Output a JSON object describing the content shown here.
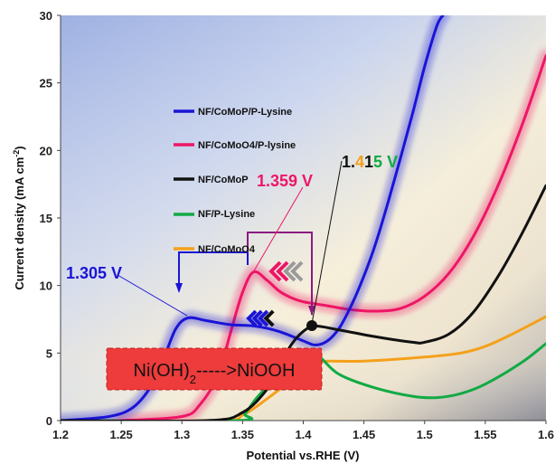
{
  "chart_data": {
    "type": "line",
    "xlabel": "Potential vs.RHE (V)",
    "ylabel": "Current density (mA cm",
    "ylabel_sup": "-2",
    "ylabel_end": ")",
    "xlim": [
      1.2,
      1.6
    ],
    "ylim": [
      0,
      30
    ],
    "xticks": [
      "1.2",
      "1.25",
      "1.3",
      "1.35",
      "1.4",
      "1.45",
      "1.5",
      "1.55",
      "1.6"
    ],
    "yticks": [
      "0",
      "5",
      "10",
      "15",
      "20",
      "25",
      "30"
    ],
    "legend_position": "left",
    "series": [
      {
        "name": "NF/CoMoP/P-Lysine",
        "color": "#1a14d6",
        "glow": true,
        "x": [
          1.2,
          1.24,
          1.26,
          1.275,
          1.285,
          1.295,
          1.305,
          1.32,
          1.34,
          1.36,
          1.38,
          1.4,
          1.41,
          1.42,
          1.43,
          1.44,
          1.45,
          1.46,
          1.47,
          1.48,
          1.49,
          1.5,
          1.51,
          1.515
        ],
        "y": [
          0,
          0.3,
          1.0,
          2.6,
          4.6,
          6.8,
          7.6,
          7.4,
          7.1,
          7.0,
          6.6,
          5.9,
          5.6,
          5.9,
          6.9,
          8.6,
          10.7,
          13.2,
          16.2,
          19.4,
          22.7,
          26.2,
          29.2,
          30
        ]
      },
      {
        "name": "NF/CoMoO4/P-lysine",
        "color": "#ee1666",
        "glow": true,
        "x": [
          1.25,
          1.3,
          1.315,
          1.33,
          1.34,
          1.35,
          1.359,
          1.37,
          1.38,
          1.39,
          1.4,
          1.42,
          1.44,
          1.46,
          1.48,
          1.5,
          1.52,
          1.54,
          1.56,
          1.58,
          1.6
        ],
        "y": [
          0,
          0.3,
          1.2,
          3.4,
          6.5,
          9.5,
          11.0,
          10.4,
          9.6,
          9.1,
          8.8,
          8.5,
          8.2,
          8.1,
          8.3,
          9.2,
          10.9,
          13.6,
          17.3,
          21.8,
          27.0
        ]
      },
      {
        "name": "NF/CoMoP",
        "color": "#111111",
        "x": [
          1.2,
          1.32,
          1.35,
          1.37,
          1.38,
          1.39,
          1.4,
          1.41,
          1.43,
          1.46,
          1.49,
          1.5,
          1.52,
          1.54,
          1.56,
          1.58,
          1.6
        ],
        "y": [
          0,
          0,
          0.6,
          2.3,
          4.0,
          5.6,
          6.6,
          7.0,
          6.7,
          6.2,
          5.8,
          5.8,
          6.4,
          8.0,
          10.6,
          13.8,
          17.4
        ]
      },
      {
        "name": "NF/P-Lysine",
        "color": "#11aa44",
        "x": [
          1.2,
          1.345,
          1.352,
          1.36,
          1.37,
          1.38,
          1.39,
          1.4,
          1.408,
          1.415,
          1.43,
          1.46,
          1.49,
          1.51,
          1.53,
          1.55,
          1.58,
          1.6
        ],
        "y": [
          0,
          0,
          0.5,
          1.5,
          2.5,
          3.4,
          4.2,
          4.8,
          5.0,
          4.6,
          3.4,
          2.4,
          1.8,
          1.7,
          2.0,
          2.7,
          4.3,
          5.7
        ]
      },
      {
        "name": "NF/CoMoO4",
        "color": "#f5a01a",
        "x": [
          1.2,
          1.33,
          1.35,
          1.37,
          1.39,
          1.4,
          1.41,
          1.42,
          1.45,
          1.5,
          1.53,
          1.55,
          1.57,
          1.6
        ],
        "y": [
          0,
          0,
          0.4,
          1.6,
          3.0,
          3.8,
          4.2,
          4.4,
          4.4,
          4.7,
          5.0,
          5.5,
          6.3,
          7.7
        ]
      }
    ],
    "annotations": [
      {
        "text": "1.305 V",
        "color": "#1a14d6"
      },
      {
        "text": "1.359 V",
        "color": "#ee1666"
      },
      {
        "text_parts": [
          {
            "t": "1.",
            "color": "#111111"
          },
          {
            "t": "4",
            "color": "#f5a01a"
          },
          {
            "t": "1",
            "color": "#111111"
          },
          {
            "t": "5",
            "color": "#11aa44"
          },
          {
            "t": " V",
            "color": "#11aa44"
          }
        ]
      }
    ],
    "process_label": {
      "pre": "Ni(OH)",
      "sub": "2",
      "post": "----->NiOOH"
    }
  }
}
